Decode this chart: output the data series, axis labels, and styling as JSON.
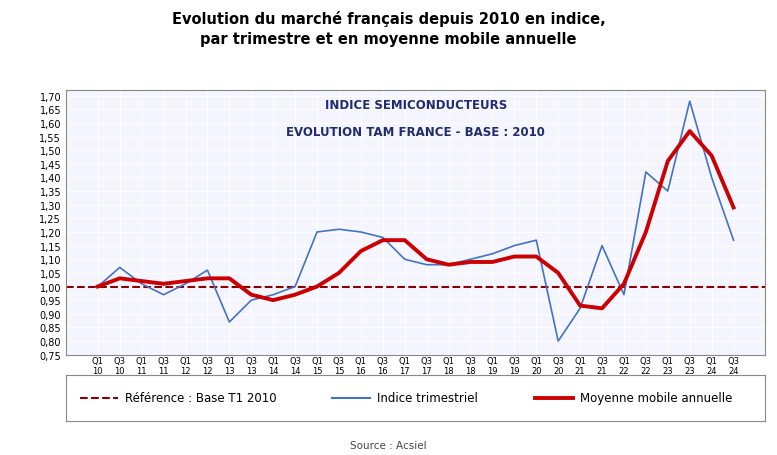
{
  "title_main": "Evolution du marché français depuis 2010 en indice,\npar trimestre et en moyenne mobile annuelle",
  "chart_title_line1": "INDICE SEMICONDUCTEURS",
  "chart_title_line2": "EVOLUTION TAM FRANCE - BASE : 2010",
  "source": "Source : Acsiel",
  "xtick_labels": [
    "Q1\n10",
    "Q3\n10",
    "Q1\n11",
    "Q3\n11",
    "Q1\n12",
    "Q3\n12",
    "Q1\n13",
    "Q3\n13",
    "Q1\n14",
    "Q3\n14",
    "Q1\n15",
    "Q3\n15",
    "Q1\n16",
    "Q3\n16",
    "Q1\n17",
    "Q3\n17",
    "Q1\n18",
    "Q3\n18",
    "Q1\n19",
    "Q3\n19",
    "Q1\n20",
    "Q3\n20",
    "Q1\n21",
    "Q3\n21",
    "Q1\n22",
    "Q3\n22",
    "Q1\n23",
    "Q3\n23",
    "Q1\n24",
    "Q3\n24"
  ],
  "quarterly": [
    1.0,
    1.07,
    1.01,
    0.97,
    1.01,
    1.06,
    0.87,
    0.95,
    0.97,
    1.0,
    1.2,
    1.21,
    1.2,
    1.18,
    1.1,
    1.08,
    1.08,
    1.1,
    1.12,
    1.15,
    1.17,
    0.8,
    0.92,
    1.15,
    0.97,
    1.42,
    1.35,
    1.68,
    1.4,
    1.17
  ],
  "moving_avg": [
    1.0,
    1.03,
    1.02,
    1.01,
    1.02,
    1.03,
    1.03,
    0.97,
    0.95,
    0.97,
    1.0,
    1.05,
    1.13,
    1.17,
    1.17,
    1.1,
    1.08,
    1.09,
    1.09,
    1.11,
    1.11,
    1.05,
    0.93,
    0.92,
    1.01,
    1.2,
    1.46,
    1.57,
    1.48,
    1.29
  ],
  "ylim": [
    0.75,
    1.72
  ],
  "ref_value": 1.0,
  "ref_color": "#8B0000",
  "quarterly_color": "#4472C4",
  "mobile_color": "#CC0000",
  "background_color": "#FFFFFF",
  "plot_bg_color": "#F5F5FF",
  "legend_ref": "Référence : Base T1 2010",
  "legend_quarterly": "Indice trimestriel",
  "legend_mobile": "Moyenne mobile annuelle",
  "chart_title_color": "#1F2D6E"
}
